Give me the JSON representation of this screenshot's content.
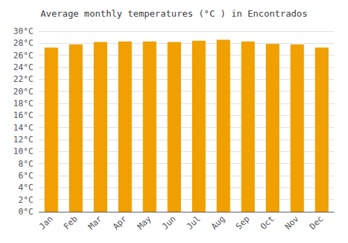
{
  "chart_data": {
    "type": "bar",
    "title": "Average monthly temperatures (°C ) in Encontrados",
    "categories": [
      "Jan",
      "Feb",
      "Mar",
      "Apr",
      "May",
      "Jun",
      "Jul",
      "Aug",
      "Sep",
      "Oct",
      "Nov",
      "Dec"
    ],
    "values": [
      27.3,
      27.8,
      28.2,
      28.3,
      28.3,
      28.2,
      28.4,
      28.6,
      28.3,
      27.9,
      27.8,
      27.3
    ],
    "color": "#F0A000",
    "ylim": [
      0,
      30
    ],
    "yticks": [
      {
        "value": 0,
        "label": "0°C"
      },
      {
        "value": 2,
        "label": "2°C"
      },
      {
        "value": 4,
        "label": "4°C"
      },
      {
        "value": 6,
        "label": "6°C"
      },
      {
        "value": 8,
        "label": "8°C"
      },
      {
        "value": 10,
        "label": "10°C"
      },
      {
        "value": 12,
        "label": "12°C"
      },
      {
        "value": 14,
        "label": "14°C"
      },
      {
        "value": 16,
        "label": "16°C"
      },
      {
        "value": 18,
        "label": "18°C"
      },
      {
        "value": 20,
        "label": "20°C"
      },
      {
        "value": 22,
        "label": "22°C"
      },
      {
        "value": 24,
        "label": "24°C"
      },
      {
        "value": 26,
        "label": "26°C"
      },
      {
        "value": 28,
        "label": "28°C"
      },
      {
        "value": 30,
        "label": "30°C"
      }
    ],
    "grid": true
  }
}
